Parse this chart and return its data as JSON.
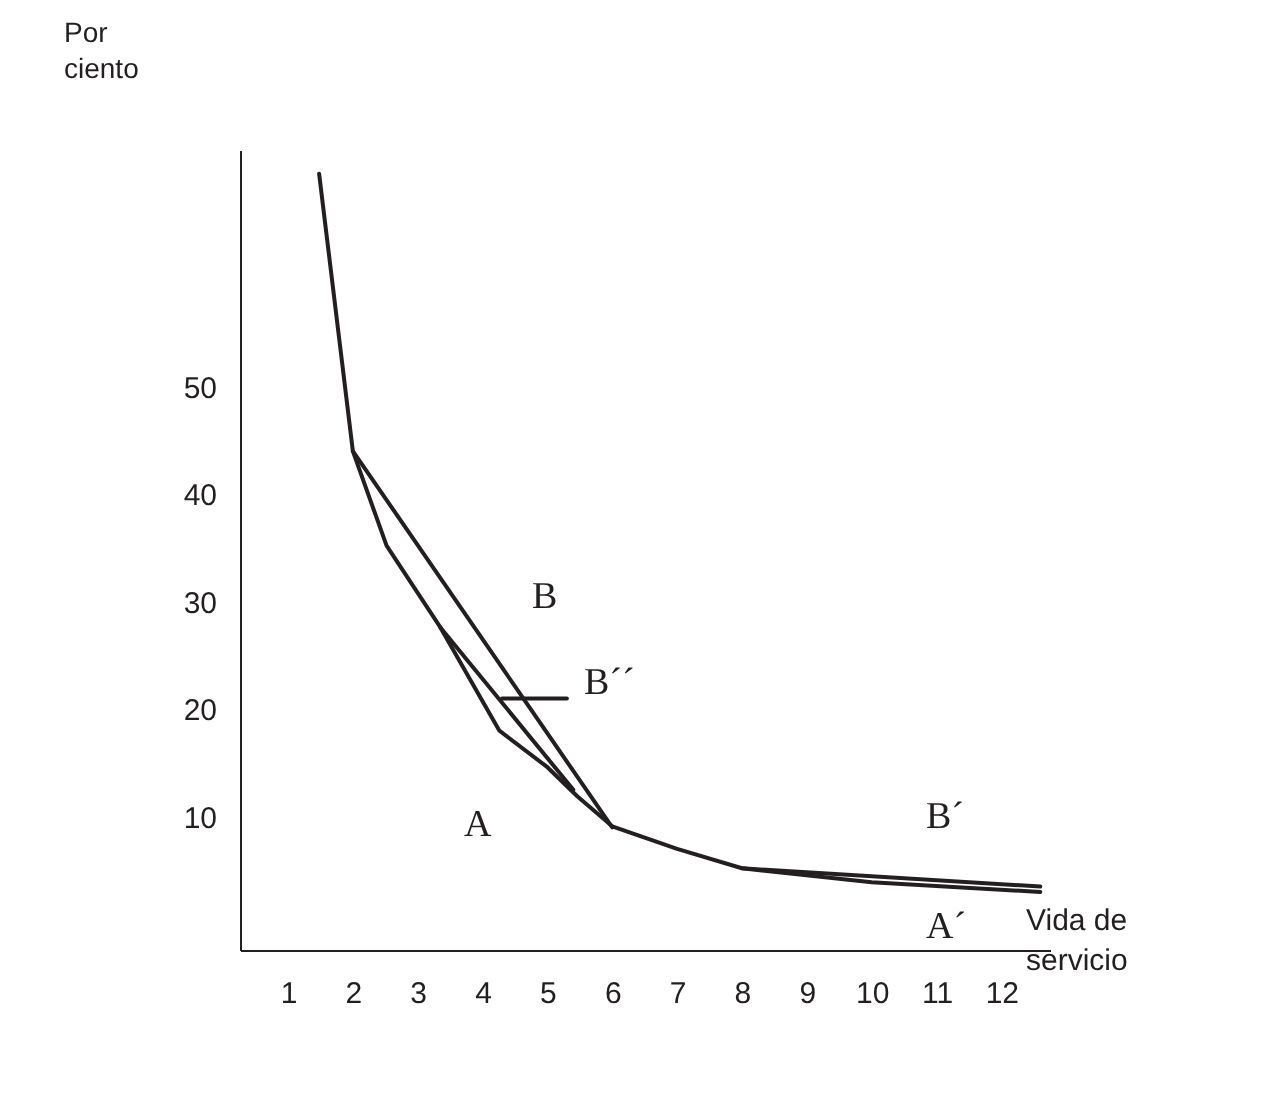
{
  "chart_data": {
    "type": "line",
    "xlabel": "Vida de\nservicio",
    "ylabel": "Por\nciento",
    "xlim": [
      0.26,
      12.75
    ],
    "ylim": [
      -2.4,
      72
    ],
    "xticks": [
      1,
      2,
      3,
      4,
      5,
      6,
      7,
      8,
      9,
      10,
      11,
      12
    ],
    "yticks": [
      10,
      20,
      30,
      40,
      50
    ],
    "grid": false,
    "marker": "none",
    "line_style": "solid",
    "series": [
      {
        "color": "#231f20",
        "x": [
          1.48,
          2,
          2.52,
          3.35,
          4.26,
          5,
          5.46,
          6,
          7,
          8,
          10,
          12.6
        ],
        "values": [
          69.8,
          44,
          35.2,
          27.6,
          18,
          14.6,
          11.9,
          9.1,
          7.0,
          5.2,
          3.9,
          3.0
        ]
      },
      {
        "color": "#231f20",
        "x": [
          2,
          6
        ],
        "values": [
          44,
          9
        ]
      },
      {
        "color": "#231f20",
        "x": [
          3.35,
          5.4
        ],
        "values": [
          27.6,
          12.5
        ]
      },
      {
        "color": "#231f20",
        "x": [
          8,
          12.6
        ],
        "values": [
          5.2,
          3.5
        ]
      },
      {
        "color": "#231f20",
        "x": [
          5.3,
          4.3
        ],
        "values": [
          21,
          21
        ]
      }
    ],
    "annotations": [
      "B",
      "B´´",
      "A",
      "B´",
      "A´"
    ]
  }
}
